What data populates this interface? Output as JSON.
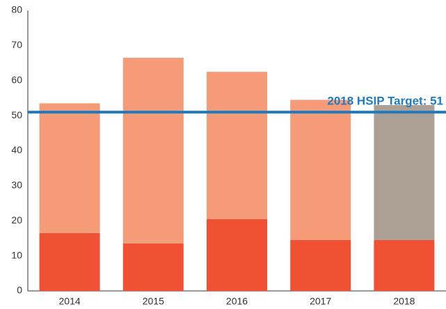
{
  "chart_data": {
    "type": "stacked_bar",
    "categories": [
      "2014",
      "2015",
      "2016",
      "2017",
      "2018"
    ],
    "series": [
      {
        "color": "#f05133",
        "values": [
          16.5,
          13.5,
          20.5,
          14.5,
          14.5
        ]
      },
      {
        "colors": [
          "#f59b77",
          "#f59b77",
          "#f59b77",
          "#f59b77",
          "#aca095"
        ],
        "values": [
          37,
          53,
          42,
          40,
          38.5
        ]
      }
    ],
    "target": {
      "value": 51,
      "label": "2018 HSIP Target: 51",
      "color": "#1f7bc1"
    },
    "ylim": [
      0,
      80
    ],
    "yticks": [
      0,
      10,
      20,
      30,
      40,
      50,
      60,
      70,
      80
    ],
    "grid": false
  }
}
